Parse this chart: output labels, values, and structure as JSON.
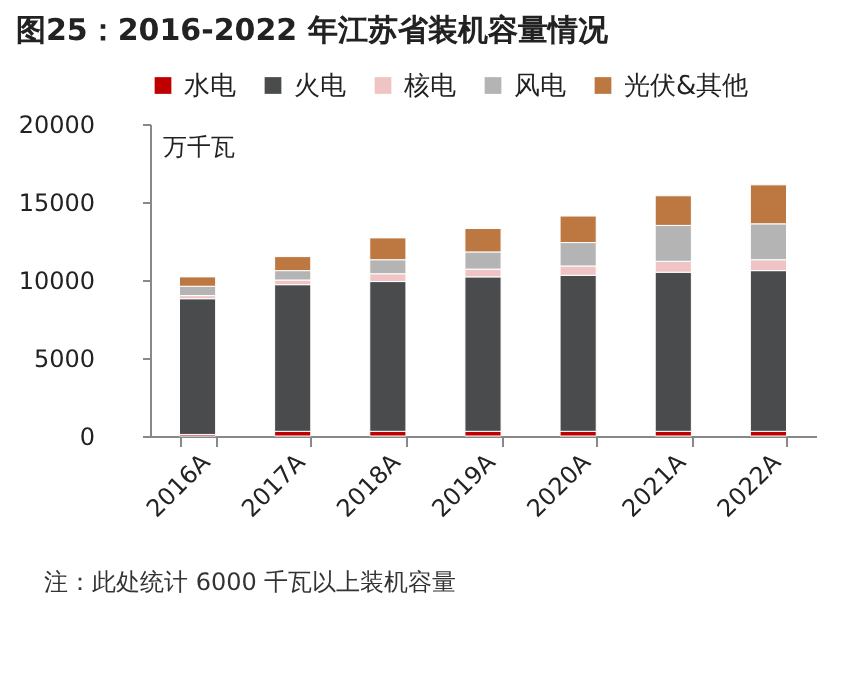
{
  "chart_data": {
    "type": "bar",
    "title": "图25：2016-2022 年江苏省装机容量情况",
    "ylabel": "万千瓦",
    "stacked": true,
    "legend": "top",
    "grid": false,
    "categories": [
      "2016A",
      "2017A",
      "2018A",
      "2019A",
      "2020A",
      "2021A",
      "2022A"
    ],
    "series": [
      {
        "name": "水电",
        "color": "#c00000",
        "values": [
          100,
          300,
          300,
          300,
          300,
          300,
          300
        ]
      },
      {
        "name": "火电",
        "color": "#4a4b4d",
        "values": [
          8700,
          9400,
          9600,
          9900,
          10000,
          10200,
          10300
        ]
      },
      {
        "name": "核电",
        "color": "#f0c4c4",
        "values": [
          200,
          300,
          500,
          500,
          600,
          700,
          700
        ]
      },
      {
        "name": "风电",
        "color": "#b4b4b4",
        "values": [
          600,
          600,
          900,
          1100,
          1500,
          2300,
          2300
        ]
      },
      {
        "name": "光伏&其他",
        "color": "#bd7842",
        "values": [
          600,
          900,
          1400,
          1500,
          1700,
          1900,
          2500
        ]
      }
    ],
    "ylim": [
      0,
      20000
    ],
    "yticks": [
      0,
      5000,
      10000,
      15000,
      20000
    ],
    "annotations": [
      "注：此处统计 6000 千瓦以上装机容量"
    ]
  }
}
